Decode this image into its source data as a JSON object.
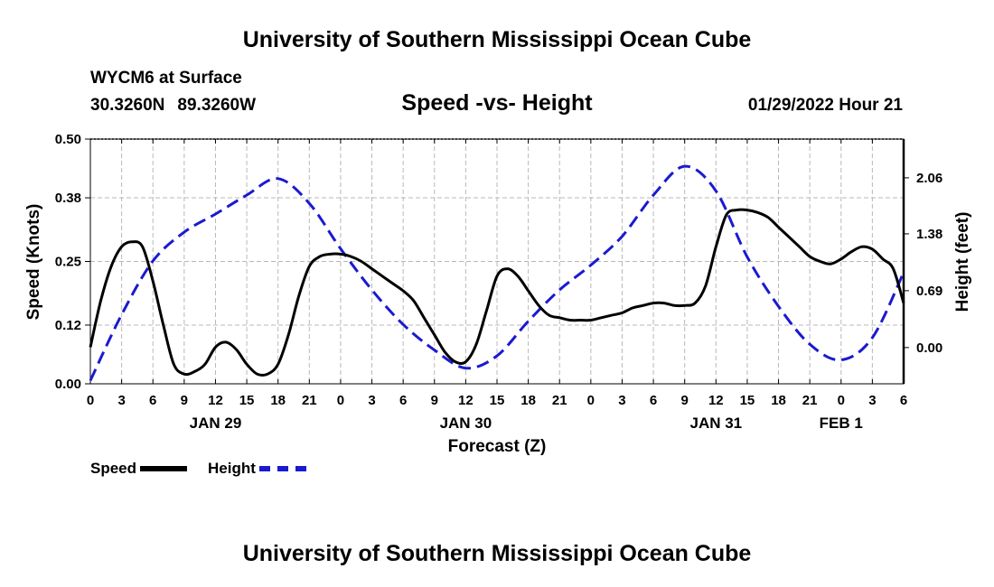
{
  "header": {
    "title_top": "University of Southern Mississippi Ocean Cube",
    "title_bottom": "University of Southern Mississippi Ocean Cube",
    "station": "WYCM6 at Surface",
    "lat": "30.3260N",
    "lon": "89.3260W",
    "datetime": "01/29/2022 Hour 21"
  },
  "chart_data": {
    "type": "line",
    "title": "Speed -vs- Height",
    "xlabel": "Forecast (Z)",
    "ylabel": "Speed (Knots)",
    "y2label": "Height (feet)",
    "x_hours_range": [
      0,
      78
    ],
    "x_tick_labels": [
      "0",
      "3",
      "6",
      "9",
      "12",
      "15",
      "18",
      "21",
      "0",
      "3",
      "6",
      "9",
      "12",
      "15",
      "18",
      "21",
      "0",
      "3",
      "6",
      "9",
      "12",
      "15",
      "18",
      "21",
      "0",
      "3",
      "6"
    ],
    "date_labels": [
      {
        "text": "JAN 29",
        "hour": 12
      },
      {
        "text": "JAN 30",
        "hour": 36
      },
      {
        "text": "JAN 31",
        "hour": 60
      },
      {
        "text": "FEB 1",
        "hour": 72
      }
    ],
    "ylim": [
      0,
      0.5
    ],
    "y_ticks": [
      0.0,
      0.12,
      0.25,
      0.38,
      0.5
    ],
    "y_tick_labels": [
      "0.00",
      "0.12",
      "0.25",
      "0.38",
      "0.50"
    ],
    "y2lim": [
      -0.44,
      2.53
    ],
    "y2_ticks": [
      0.0,
      0.69,
      1.38,
      2.06
    ],
    "y2_tick_labels": [
      "0.00",
      "0.69",
      "1.38",
      "2.06"
    ],
    "grid": true,
    "legend": "bottom-left",
    "series": [
      {
        "name": "Speed",
        "axis": "left",
        "color": "#000000",
        "style": "solid",
        "x": [
          0,
          1,
          2,
          3,
          4,
          5,
          6,
          7,
          8,
          9,
          10,
          11,
          12,
          13,
          14,
          15,
          16,
          17,
          18,
          19,
          20,
          21,
          22,
          23,
          24,
          25,
          26,
          27,
          28,
          29,
          30,
          31,
          32,
          33,
          34,
          35,
          36,
          37,
          38,
          39,
          40,
          41,
          42,
          43,
          44,
          45,
          46,
          47,
          48,
          49,
          50,
          51,
          52,
          53,
          54,
          55,
          56,
          57,
          58,
          59,
          60,
          61,
          62,
          63,
          64,
          65,
          66,
          67,
          68,
          69,
          70,
          71,
          72,
          73,
          74,
          75,
          76,
          77,
          78
        ],
        "values": [
          0.075,
          0.17,
          0.24,
          0.28,
          0.29,
          0.28,
          0.21,
          0.12,
          0.04,
          0.02,
          0.025,
          0.04,
          0.075,
          0.085,
          0.07,
          0.04,
          0.02,
          0.02,
          0.04,
          0.1,
          0.18,
          0.24,
          0.26,
          0.265,
          0.265,
          0.26,
          0.25,
          0.235,
          0.22,
          0.205,
          0.19,
          0.17,
          0.135,
          0.1,
          0.065,
          0.045,
          0.045,
          0.08,
          0.15,
          0.22,
          0.235,
          0.22,
          0.19,
          0.16,
          0.14,
          0.135,
          0.13,
          0.13,
          0.13,
          0.135,
          0.14,
          0.145,
          0.155,
          0.16,
          0.165,
          0.165,
          0.16,
          0.16,
          0.165,
          0.2,
          0.28,
          0.345,
          0.355,
          0.355,
          0.35,
          0.34,
          0.32,
          0.3,
          0.28,
          0.26,
          0.25,
          0.245,
          0.255,
          0.27,
          0.28,
          0.275,
          0.255,
          0.235,
          0.165
        ]
      },
      {
        "name": "Height",
        "axis": "right",
        "color": "#1a1ad0",
        "style": "dashed",
        "x": [
          0,
          3,
          6,
          9,
          12,
          15,
          18,
          21,
          24,
          27,
          30,
          33,
          36,
          39,
          42,
          45,
          48,
          51,
          54,
          57,
          60,
          63,
          66,
          69,
          72,
          75,
          78
        ],
        "values": [
          -0.4,
          0.4,
          1.05,
          1.4,
          1.62,
          1.85,
          2.05,
          1.75,
          1.2,
          0.7,
          0.28,
          -0.03,
          -0.25,
          -0.1,
          0.32,
          0.7,
          1.0,
          1.35,
          1.85,
          2.2,
          1.9,
          1.1,
          0.5,
          0.04,
          -0.15,
          0.12,
          0.91
        ]
      }
    ]
  }
}
